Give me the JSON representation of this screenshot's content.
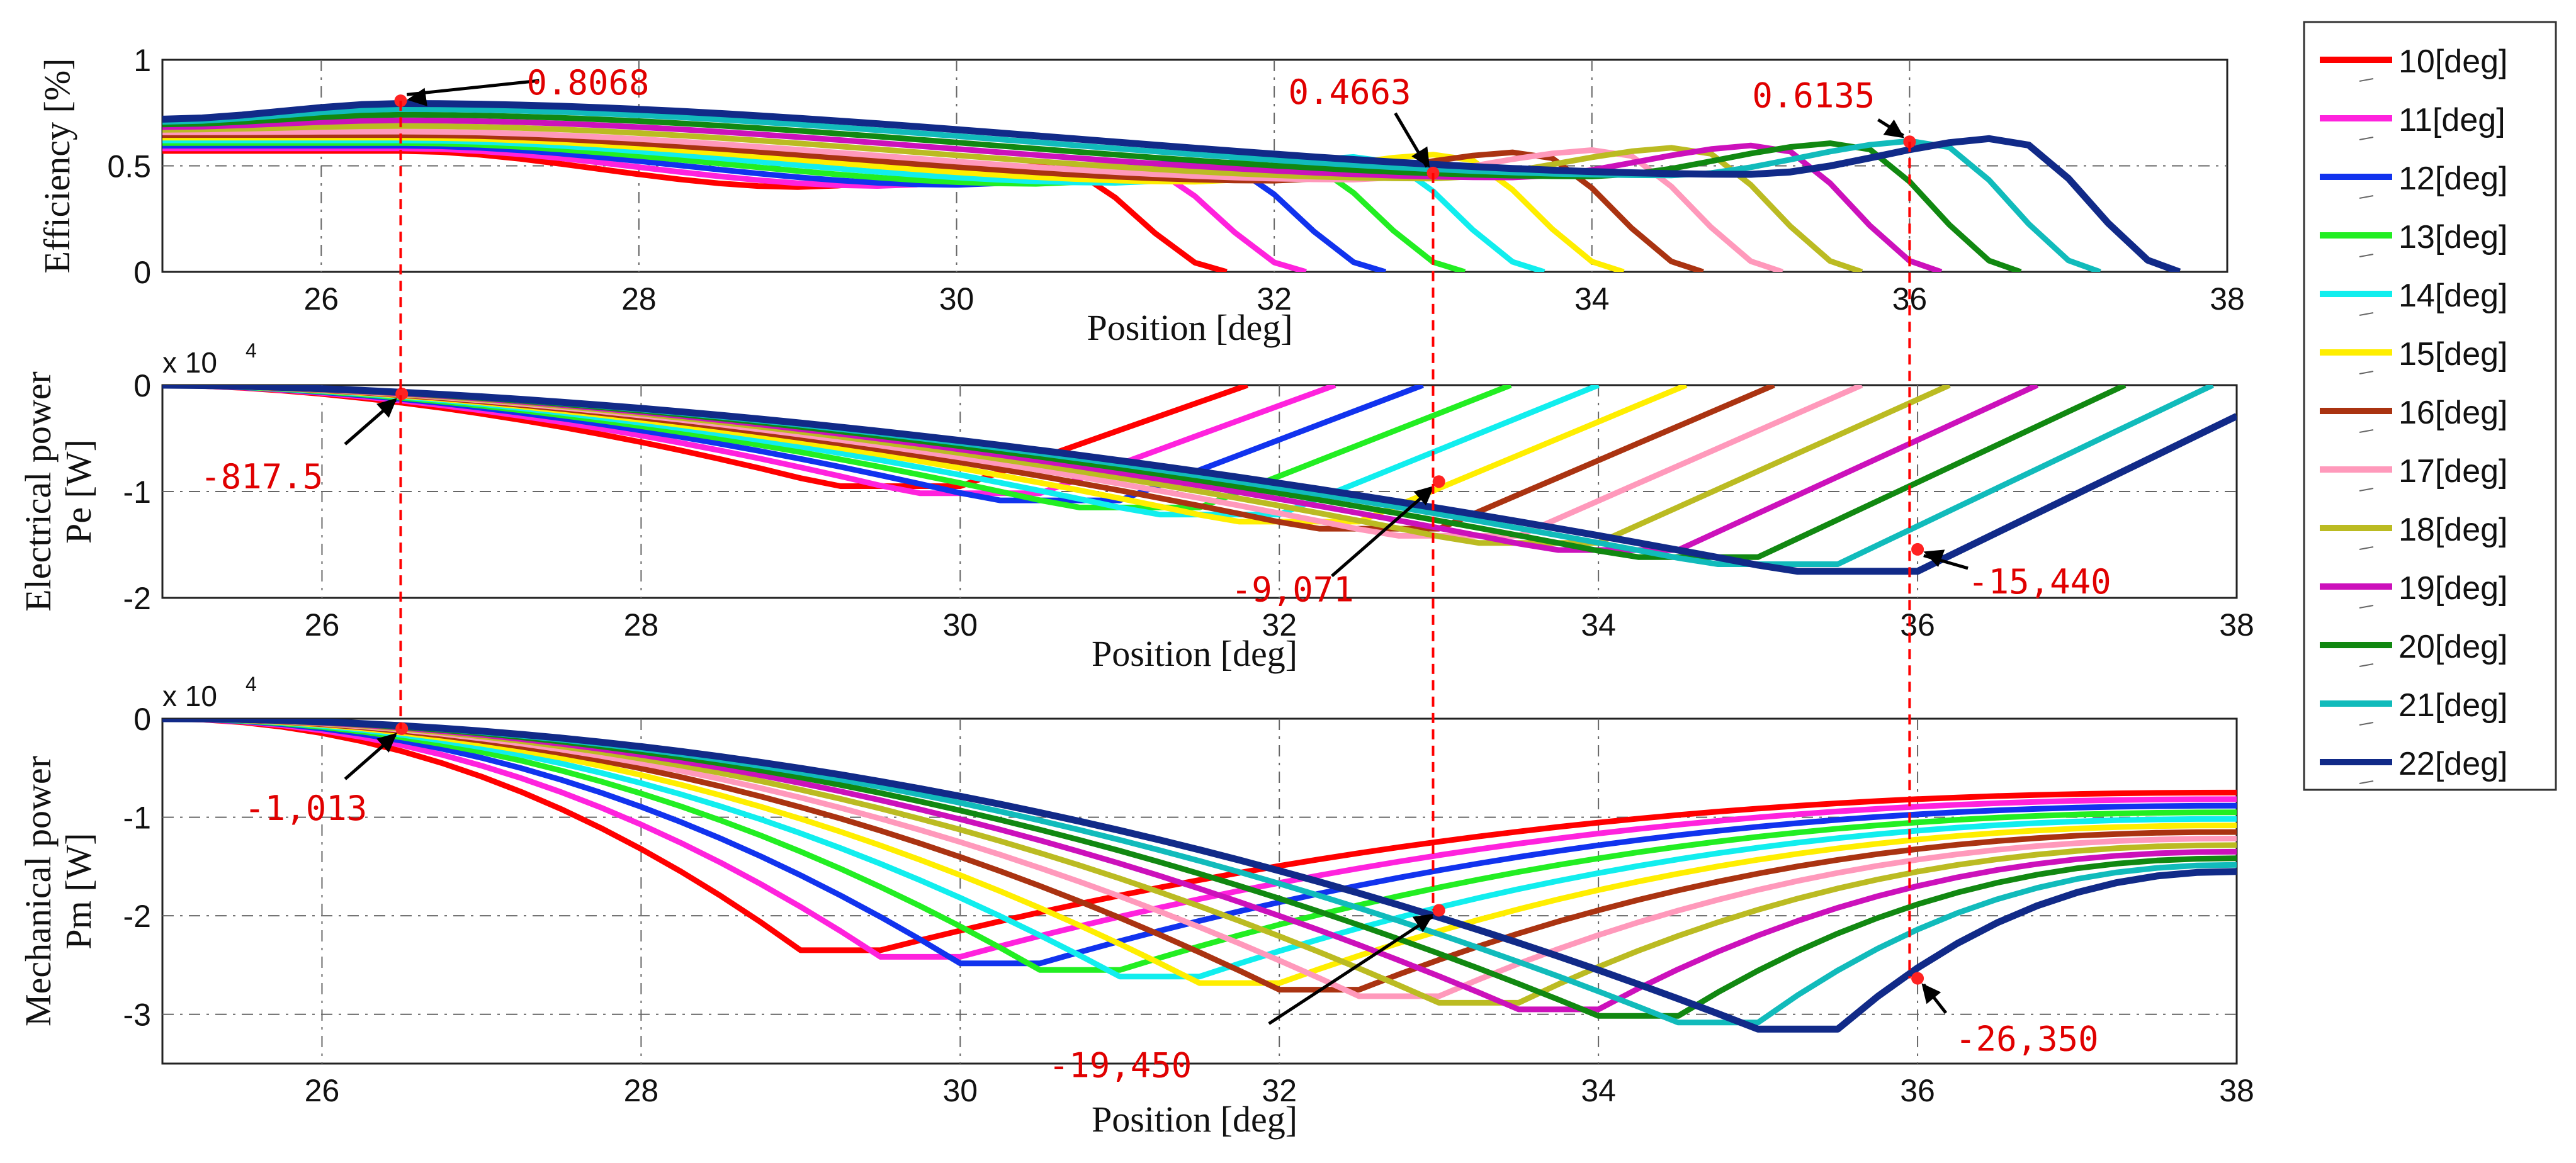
{
  "chart_data": {
    "type": "line",
    "legend": {
      "placement": "right",
      "entries": [
        {
          "label": "10[deg]",
          "color": "#ff0000"
        },
        {
          "label": "11[deg]",
          "color": "#ff22dd"
        },
        {
          "label": "12[deg]",
          "color": "#1133ee"
        },
        {
          "label": "13[deg]",
          "color": "#22ee22"
        },
        {
          "label": "14[deg]",
          "color": "#11eeee"
        },
        {
          "label": "15[deg]",
          "color": "#ffee00"
        },
        {
          "label": "16[deg]",
          "color": "#aa3311"
        },
        {
          "label": "17[deg]",
          "color": "#ff99bb"
        },
        {
          "label": "18[deg]",
          "color": "#bbbb22"
        },
        {
          "label": "19[deg]",
          "color": "#cc11bb"
        },
        {
          "label": "20[deg]",
          "color": "#118811"
        },
        {
          "label": "21[deg]",
          "color": "#11bbbb"
        },
        {
          "label": "22[deg]",
          "color": "#112a88"
        }
      ]
    },
    "panels": [
      {
        "id": "efficiency",
        "ylabel_lines": [
          "Efficiency [%]"
        ],
        "xlabel": "Position [deg]",
        "xlim": [
          25,
          38
        ],
        "ylim": [
          0,
          1
        ],
        "xticks": [
          26,
          28,
          30,
          32,
          34,
          36,
          38
        ],
        "yticks": [
          0,
          0.5,
          1
        ],
        "ytick_labels": [
          "0",
          "0.5",
          "1"
        ],
        "multiplier": "",
        "params": {
          "startValues": [
            0.57,
            0.72
          ],
          "peak": 0.81,
          "valley": 0.46,
          "risePeak": [
            0.5,
            0.63
          ]
        },
        "annotations": [
          {
            "label": "0.8068",
            "x": 26.5,
            "y": 0.8068
          },
          {
            "label": "0.4663",
            "x": 33.0,
            "y": 0.4663
          },
          {
            "label": "0.6135",
            "x": 36.0,
            "y": 0.6135
          }
        ]
      },
      {
        "id": "electrical",
        "ylabel_lines": [
          "Electrical power",
          "Pe  [W]"
        ],
        "xlabel": "Position [deg]",
        "xlim": [
          25,
          38
        ],
        "ylim": [
          -20000,
          0
        ],
        "xticks": [
          26,
          28,
          30,
          32,
          34,
          36,
          38
        ],
        "yticks": [
          -20000,
          -10000,
          0
        ],
        "ytick_labels": [
          "-2",
          "-1",
          "0"
        ],
        "multiplier": "x 10",
        "multiplier_exp": "4",
        "params": {
          "minValues": [
            -9500,
            -17500
          ]
        },
        "annotations": [
          {
            "label": "-817.5",
            "x": 26.5,
            "y": -817.5
          },
          {
            "label": "-9,071",
            "x": 33.0,
            "y": -9071
          },
          {
            "label": "-15,440",
            "x": 36.0,
            "y": -15440
          }
        ]
      },
      {
        "id": "mechanical",
        "ylabel_lines": [
          "Mechanical power",
          "Pm [W]"
        ],
        "xlabel": "Position [deg]",
        "xlim": [
          25,
          38
        ],
        "ylim": [
          -35000,
          0
        ],
        "xticks": [
          26,
          28,
          30,
          32,
          34,
          36,
          38
        ],
        "yticks": [
          -30000,
          -20000,
          -10000,
          0
        ],
        "ytick_labels": [
          "-3",
          "-2",
          "-1",
          "0"
        ],
        "multiplier": "x 10",
        "multiplier_exp": "4",
        "params": {
          "minValues": [
            -23500,
            -31500
          ],
          "endValues": [
            -7500,
            -15500
          ]
        },
        "annotations": [
          {
            "label": "-1,013",
            "x": 26.5,
            "y": -1013
          },
          {
            "label": "-19,450",
            "x": 33.0,
            "y": -19450
          },
          {
            "label": "-26,350",
            "x": 36.0,
            "y": -26350
          }
        ]
      }
    ]
  }
}
